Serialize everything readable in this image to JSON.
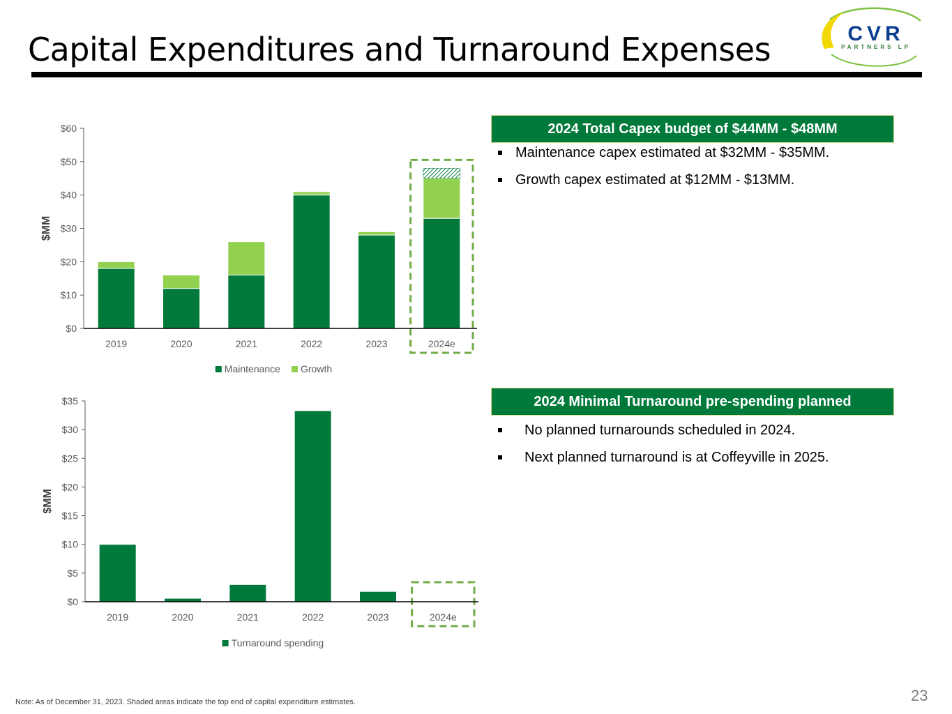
{
  "title": "Capital Expenditures and Turnaround Expenses",
  "logo": {
    "text": "CVR",
    "subtext": "PARTNERS LP"
  },
  "colors": {
    "dark_green": "#007a3a",
    "light_green": "#92d050",
    "dash_green": "#70ad47"
  },
  "capex_panel": {
    "header": "2024 Total Capex budget of $44MM - $48MM",
    "bullets": [
      "Maintenance capex estimated at $32MM - $35MM.",
      "Growth capex estimated at $12MM - $13MM."
    ]
  },
  "turnaround_panel": {
    "header": "2024 Minimal Turnaround pre-spending planned",
    "bullets": [
      "No planned turnarounds scheduled in 2024.",
      "Next planned turnaround is at Coffeyville in 2025."
    ]
  },
  "chart_data": [
    {
      "type": "bar",
      "stacked": true,
      "title": "",
      "xlabel": "",
      "ylabel": "$MM",
      "categories": [
        "2019",
        "2020",
        "2021",
        "2022",
        "2023",
        "2024e"
      ],
      "series": [
        {
          "name": "Maintenance",
          "color": "#007a3a",
          "values": [
            18,
            12,
            16,
            40,
            28,
            33
          ]
        },
        {
          "name": "Growth",
          "color": "#92d050",
          "values": [
            2,
            4,
            10,
            1,
            1,
            12
          ]
        },
        {
          "name": "Top-end estimate (shaded)",
          "color": "#007a3a",
          "values": [
            0,
            0,
            0,
            0,
            0,
            3
          ],
          "legend": false
        }
      ],
      "ylim": [
        0,
        60
      ],
      "yticks": [
        0,
        10,
        20,
        30,
        40,
        50,
        60
      ],
      "ytick_labels": [
        "$0",
        "$10",
        "$20",
        "$30",
        "$40",
        "$50",
        "$60"
      ],
      "highlight_category": "2024e",
      "legend": [
        "Maintenance",
        "Growth"
      ]
    },
    {
      "type": "bar",
      "title": "",
      "xlabel": "",
      "ylabel": "$MM",
      "categories": [
        "2019",
        "2020",
        "2021",
        "2022",
        "2023",
        "2024e"
      ],
      "series": [
        {
          "name": "Turnaround spending",
          "color": "#007a3a",
          "values": [
            10,
            0.6,
            3,
            33.3,
            1.8,
            0.1
          ]
        }
      ],
      "ylim": [
        0,
        35
      ],
      "yticks": [
        0,
        5,
        10,
        15,
        20,
        25,
        30,
        35
      ],
      "ytick_labels": [
        "$0",
        "$5",
        "$10",
        "$15",
        "$20",
        "$25",
        "$30",
        "$35"
      ],
      "highlight_category": "2024e",
      "legend": [
        "Turnaround spending"
      ]
    }
  ],
  "note": "Note:  As of December 31, 2023. Shaded areas indicate the top end of capital expenditure estimates.",
  "page_number": "23"
}
